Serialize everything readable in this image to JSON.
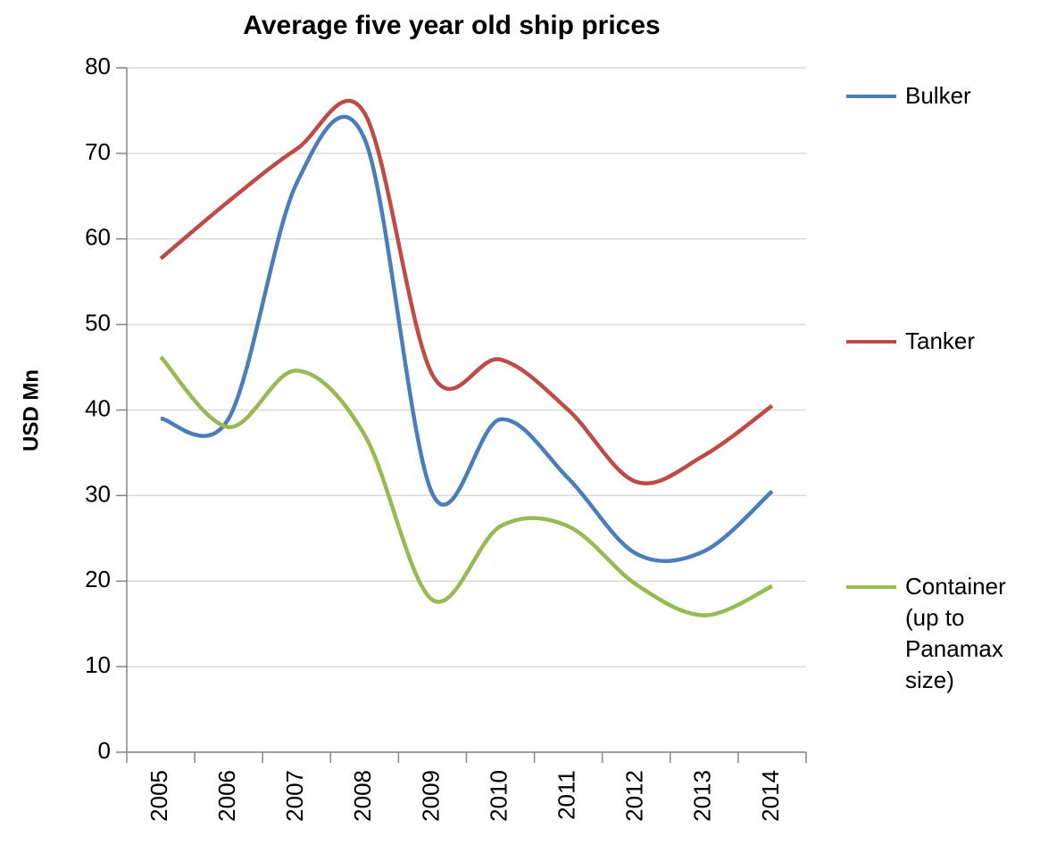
{
  "chart_data": {
    "type": "line",
    "title": "Average five year old ship prices",
    "y_label": "USD Mn",
    "categories": [
      "2005",
      "2006",
      "2007",
      "2008",
      "2009",
      "2010",
      "2011",
      "2012",
      "2013",
      "2014"
    ],
    "series": [
      {
        "name": "Bulker",
        "color": "#4a7ebb",
        "values": [
          39,
          39,
          66.5,
          71.7,
          30.2,
          38.9,
          32,
          23.2,
          23.5,
          30.5
        ]
      },
      {
        "name": "Tanker",
        "color": "#be4b48",
        "values": [
          57.7,
          64.4,
          70.5,
          74.7,
          44.1,
          45.9,
          40,
          31.6,
          34.7,
          40.5
        ]
      },
      {
        "name": "Container (up to Panamax size)",
        "color": "#98b954",
        "values": [
          46.2,
          38,
          44.6,
          37.1,
          17.8,
          26.4,
          26.4,
          19.6,
          16,
          19.4
        ]
      }
    ],
    "ylim": [
      0,
      80
    ],
    "yticks": [
      0,
      10,
      20,
      30,
      40,
      50,
      60,
      70,
      80
    ],
    "grid": true,
    "legend": "right",
    "smooth": true
  }
}
